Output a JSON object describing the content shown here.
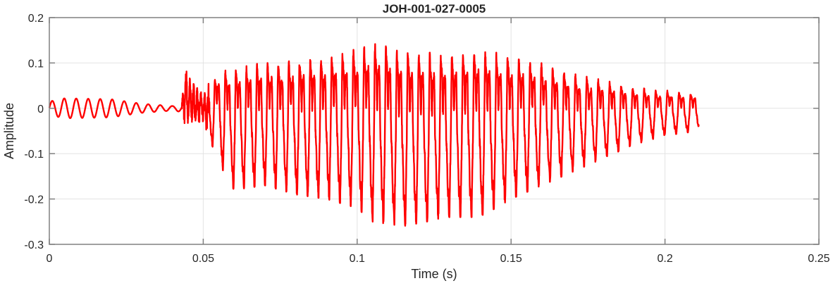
{
  "chart_data": {
    "type": "line",
    "title": "JOH-001-027-0005",
    "xlabel": "Time (s)",
    "ylabel": "Amplitude",
    "xlim": [
      0,
      0.25
    ],
    "ylim": [
      -0.3,
      0.2
    ],
    "xticks": [
      0,
      0.05,
      0.1,
      0.15,
      0.2,
      0.25
    ],
    "xtick_labels": [
      "0",
      "0.05",
      "0.1",
      "0.15",
      "0.2",
      "0.25"
    ],
    "yticks": [
      -0.3,
      -0.2,
      -0.1,
      0,
      0.1,
      0.2
    ],
    "ytick_labels": [
      "-0.3",
      "-0.2",
      "-0.1",
      "0",
      "0.1",
      "0.2"
    ],
    "grid": true,
    "line_color": "#ff0000",
    "series": [
      {
        "signal_end_time": 0.211,
        "envelope": {
          "t": [
            0,
            0.005,
            0.02,
            0.03,
            0.04,
            0.043,
            0.044,
            0.046,
            0.05,
            0.055,
            0.06,
            0.07,
            0.08,
            0.09,
            0.1,
            0.105,
            0.115,
            0.13,
            0.14,
            0.15,
            0.16,
            0.17,
            0.18,
            0.19,
            0.2,
            0.211
          ],
          "max": [
            0.015,
            0.022,
            0.02,
            0.01,
            0.005,
            0.008,
            0.09,
            0.06,
            0.03,
            0.1,
            0.12,
            0.13,
            0.14,
            0.15,
            0.17,
            0.19,
            0.17,
            0.16,
            0.17,
            0.15,
            0.13,
            0.1,
            0.08,
            0.06,
            0.05,
            0.04
          ],
          "min": [
            -0.015,
            -0.022,
            -0.02,
            -0.01,
            -0.005,
            -0.008,
            -0.035,
            -0.03,
            -0.03,
            -0.12,
            -0.18,
            -0.17,
            -0.19,
            -0.2,
            -0.22,
            -0.25,
            -0.26,
            -0.24,
            -0.24,
            -0.2,
            -0.17,
            -0.14,
            -0.11,
            -0.08,
            -0.06,
            -0.05
          ]
        }
      }
    ]
  }
}
